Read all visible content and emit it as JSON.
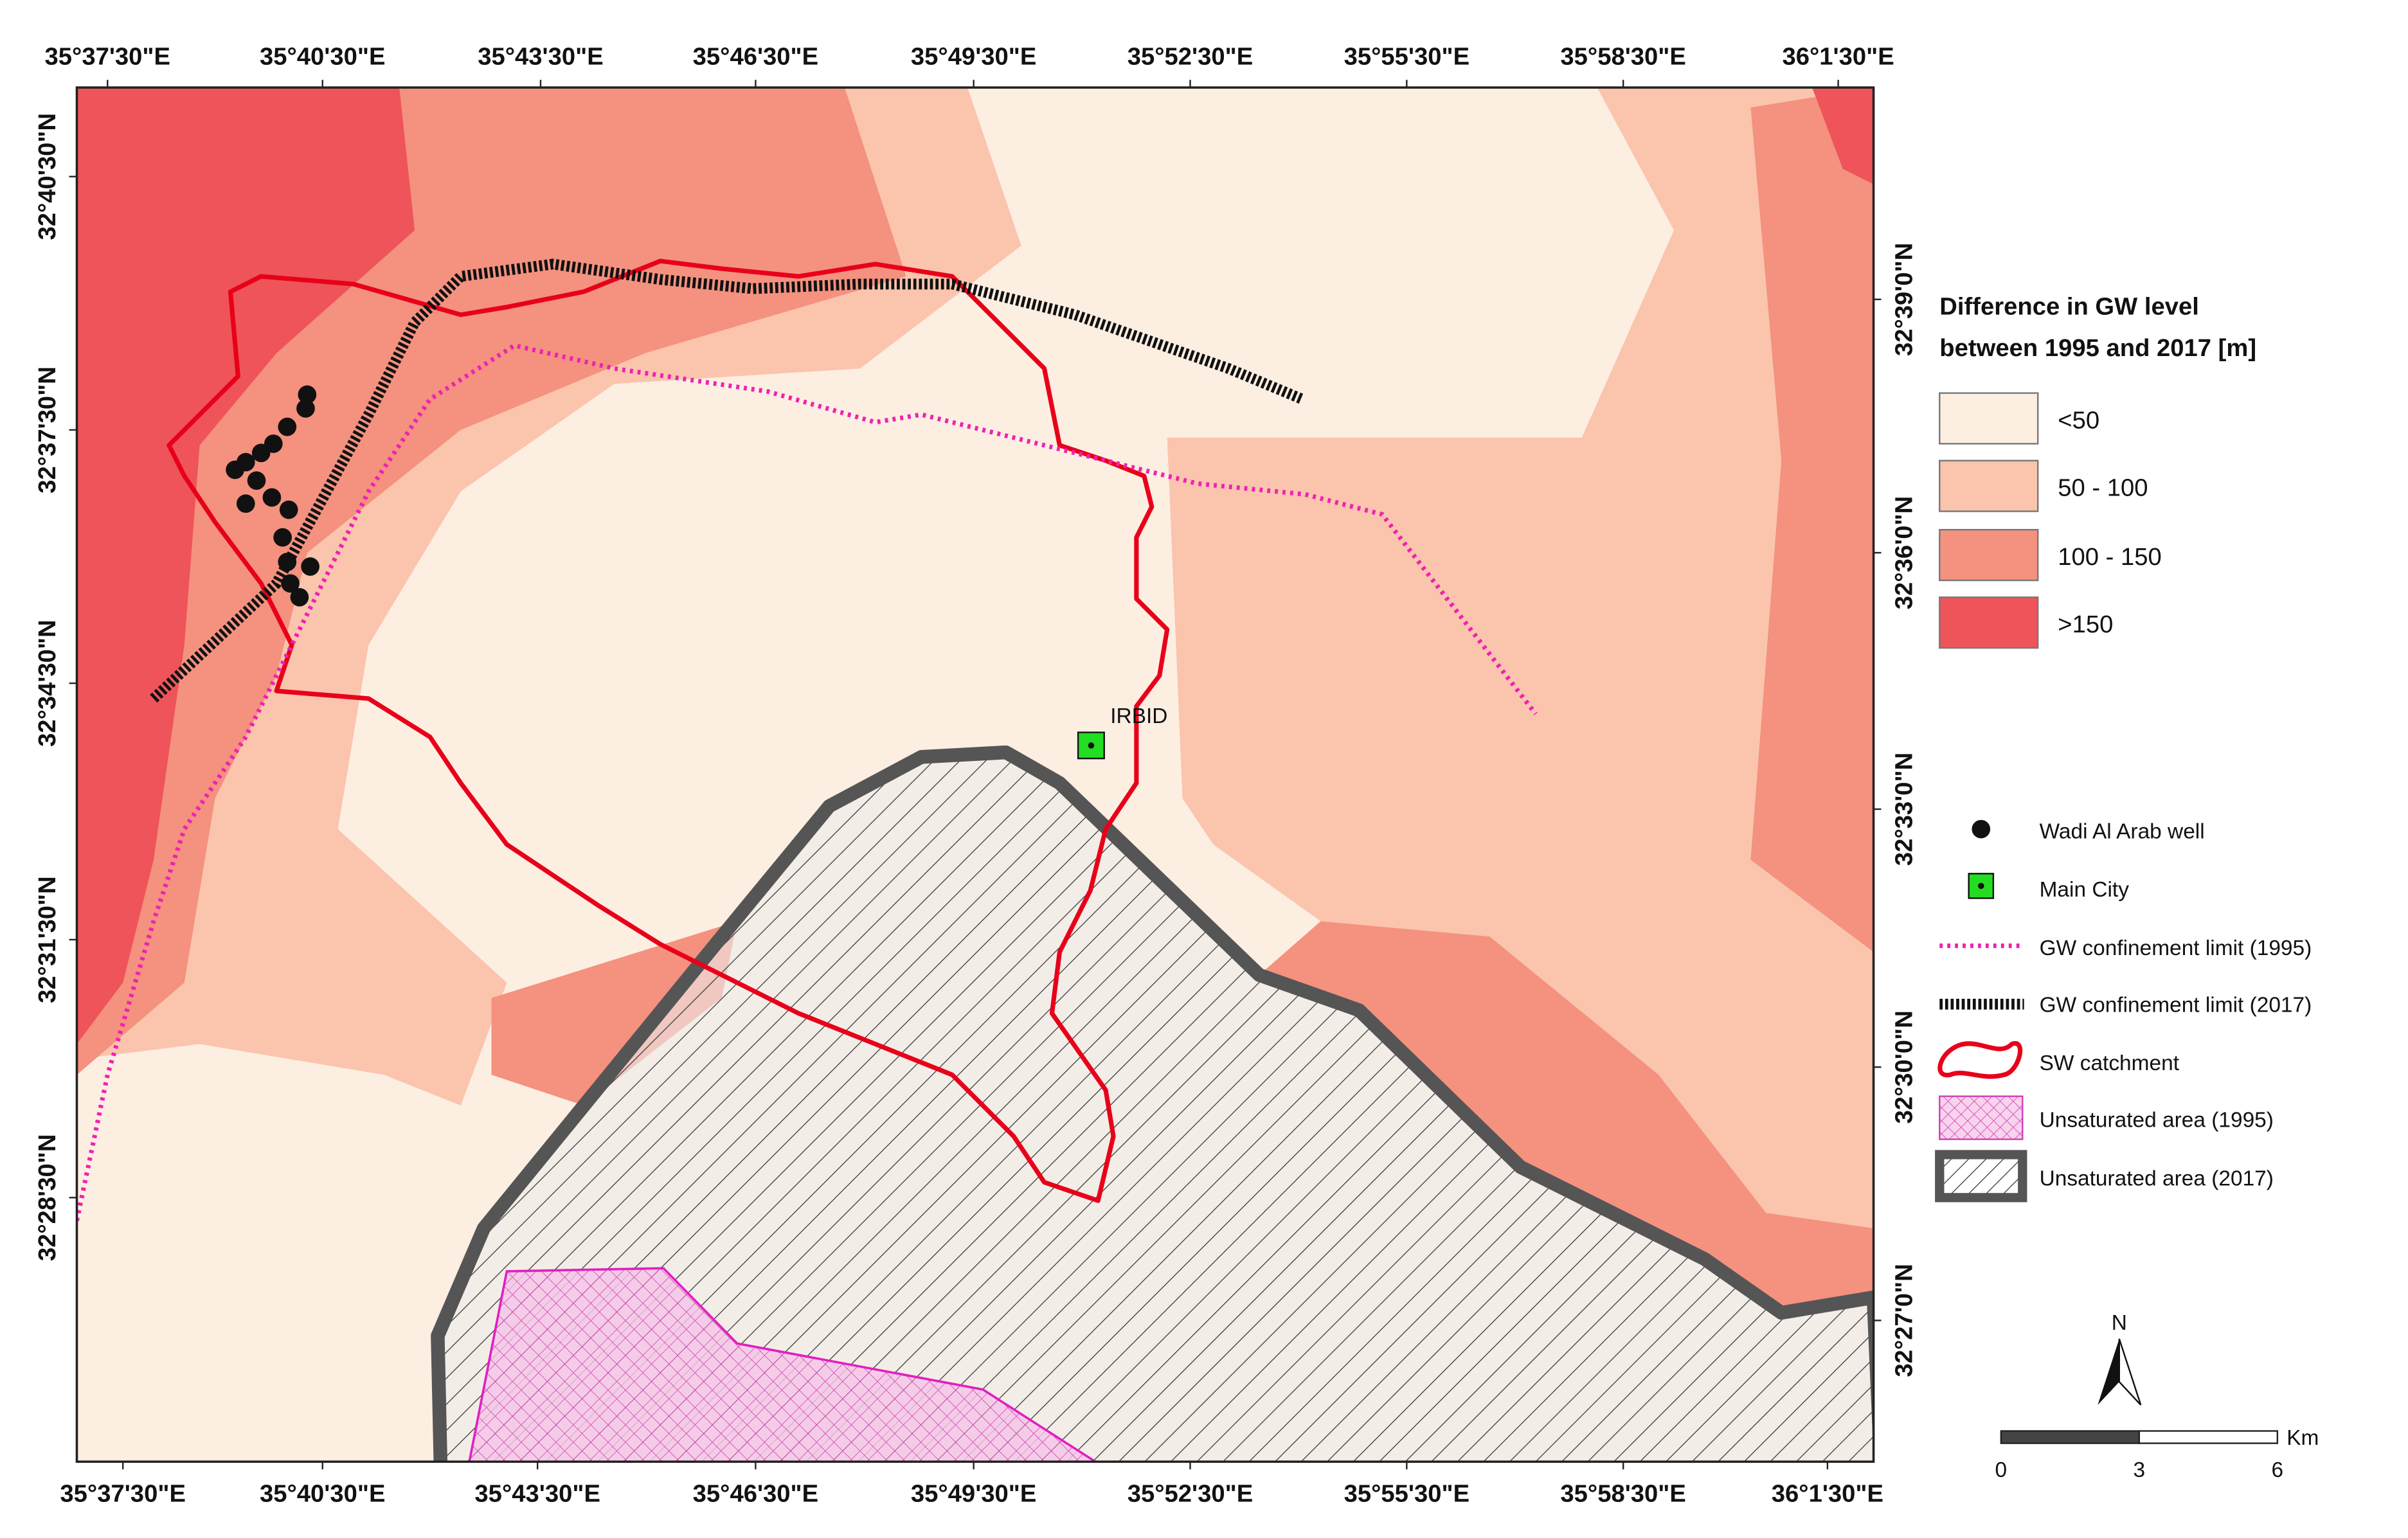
{
  "map": {
    "top_labels": [
      "35°37'30\"E",
      "35°40'30\"E",
      "35°43'30\"E",
      "35°46'30\"E",
      "35°49'30\"E",
      "35°52'30\"E",
      "35°55'30\"E",
      "35°58'30\"E",
      "36°1'30\"E"
    ],
    "bottom_labels": [
      "35°37'30\"E",
      "35°40'30\"E",
      "35°43'30\"E",
      "35°46'30\"E",
      "35°49'30\"E",
      "35°52'30\"E",
      "35°55'30\"E",
      "35°58'30\"E",
      "36°1'30\"E"
    ],
    "left_labels": [
      "32°40'30\"N",
      "32°37'30\"N",
      "32°34'30\"N",
      "32°31'30\"N",
      "32°28'30\"N"
    ],
    "right_labels": [
      "32°39'0\"N",
      "32°36'0\"N",
      "32°33'0\"N",
      "32°30'0\"N",
      "32°27'0\"N"
    ],
    "city_label": "IRBID"
  },
  "legend": {
    "title_lines": [
      "Difference in GW level",
      "between 1995 and 2017 [m]"
    ],
    "classes": [
      "<50",
      "50 - 100",
      "100 - 150",
      ">150"
    ],
    "symbols": [
      "Wadi Al Arab well",
      "Main City",
      "GW confinement  limit (1995)",
      "GW confinement  limit (2017)",
      "SW catchment",
      "Unsaturated area (1995)",
      "Unsaturated area (2017)"
    ]
  },
  "scale_bar": {
    "labels": [
      "0",
      "3",
      "6"
    ],
    "unit": "Km"
  },
  "north_arrow": {
    "label": "N"
  }
}
